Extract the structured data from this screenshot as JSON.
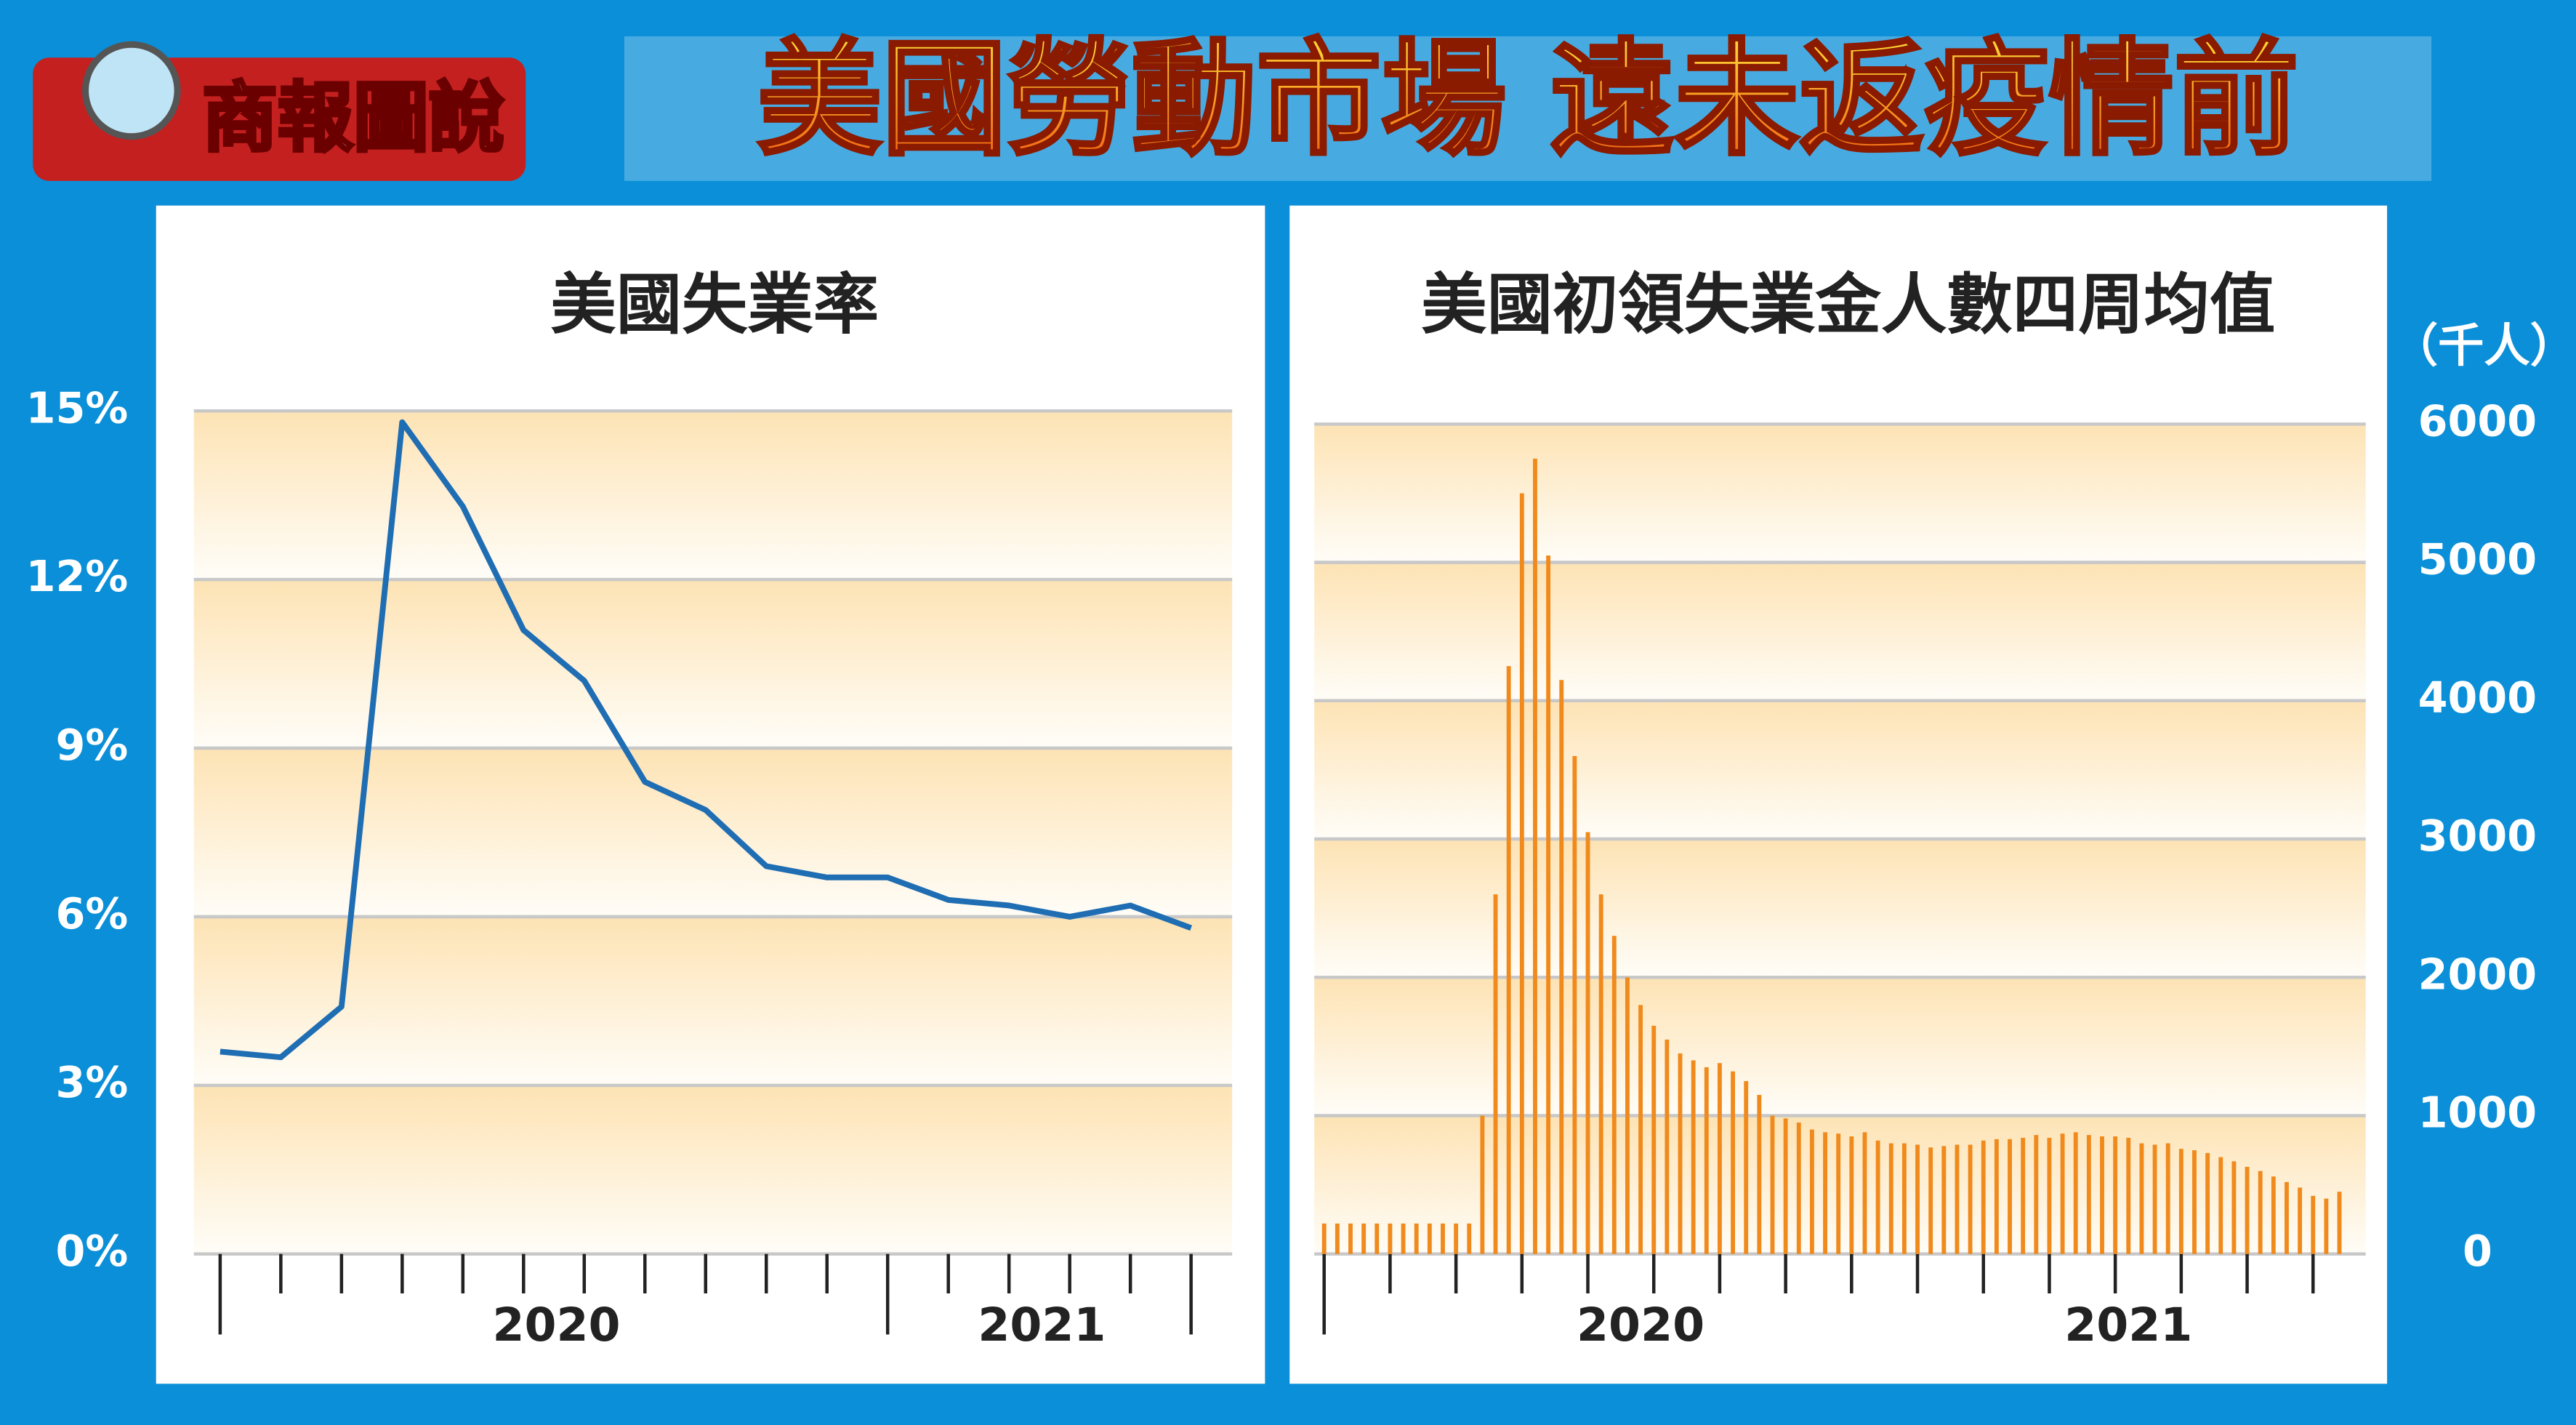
{
  "header": {
    "badge": "商報圖說",
    "title": "美國勞動市場 遠未返疫情前"
  },
  "chart_data": [
    {
      "type": "line",
      "title": "美國失業率",
      "categories": [
        null,
        null,
        null,
        null,
        null,
        "2020",
        null,
        null,
        null,
        null,
        null,
        null,
        null,
        "2021",
        null,
        null,
        null
      ],
      "values": [
        3.6,
        3.5,
        4.4,
        14.8,
        13.3,
        11.1,
        10.2,
        8.4,
        7.9,
        6.9,
        6.7,
        6.7,
        6.3,
        6.2,
        6.0,
        6.2,
        5.8
      ],
      "color": "#1f6db3",
      "ylim": [
        0,
        15
      ],
      "yticks": [
        {
          "value": 0,
          "label": "0%"
        },
        {
          "value": 3,
          "label": "3%"
        },
        {
          "value": 6,
          "label": "6%"
        },
        {
          "value": 9,
          "label": "9%"
        },
        {
          "value": 12,
          "label": "12%"
        },
        {
          "value": 15,
          "label": "15%"
        }
      ],
      "grid": true
    },
    {
      "type": "bar",
      "title": "美國初領失業金人數四周均值",
      "y_label": "（千人）",
      "categories": [
        null,
        null,
        null,
        null,
        null,
        null,
        null,
        null,
        null,
        null,
        null,
        null,
        null,
        null,
        null,
        null,
        null,
        null,
        null,
        null,
        null,
        null,
        null,
        null,
        "2020",
        null,
        null,
        null,
        null,
        null,
        null,
        null,
        null,
        null,
        null,
        null,
        null,
        null,
        null,
        null,
        null,
        null,
        null,
        null,
        null,
        null,
        null,
        null,
        null,
        null,
        null,
        null,
        null,
        null,
        null,
        null,
        null,
        null,
        null,
        null,
        null,
        "2021",
        null,
        null,
        null,
        null,
        null,
        null,
        null,
        null,
        null,
        null,
        null,
        null,
        null,
        null,
        null,
        null
      ],
      "values": [
        220,
        220,
        220,
        220,
        220,
        220,
        220,
        220,
        220,
        220,
        220,
        220,
        1000,
        2600,
        4250,
        5500,
        5750,
        5050,
        4150,
        3600,
        3050,
        2600,
        2300,
        2000,
        1800,
        1650,
        1550,
        1450,
        1400,
        1350,
        1380,
        1320,
        1250,
        1150,
        1000,
        980,
        950,
        900,
        880,
        870,
        850,
        880,
        820,
        800,
        800,
        790,
        770,
        780,
        790,
        790,
        820,
        830,
        830,
        840,
        860,
        840,
        870,
        880,
        860,
        850,
        850,
        840,
        800,
        790,
        800,
        760,
        750,
        730,
        700,
        670,
        630,
        600,
        560,
        520,
        480,
        420,
        400,
        450
      ],
      "color": "#f08a1c",
      "ylim": [
        0,
        6000
      ],
      "yticks": [
        0,
        1000,
        2000,
        3000,
        4000,
        5000,
        6000
      ],
      "grid": true
    }
  ]
}
